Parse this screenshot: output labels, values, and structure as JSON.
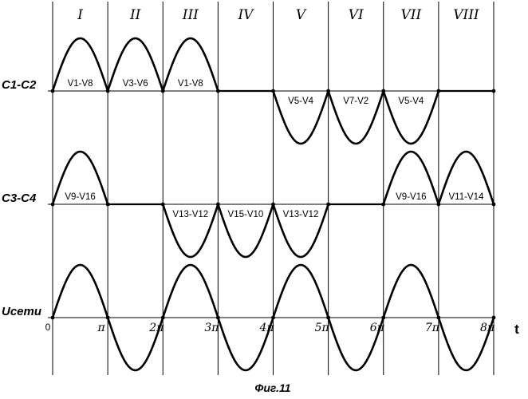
{
  "intervals": [
    "I",
    "II",
    "III",
    "IV",
    "V",
    "VI",
    "VII",
    "VIII"
  ],
  "rows": [
    {
      "label": "C1-C2",
      "waves": [
        1,
        1,
        1,
        0,
        -1,
        -1,
        -1,
        0
      ],
      "labels": [
        "V1-V8",
        "V3-V6",
        "V1-V8",
        "",
        "V5-V4",
        "V7-V2",
        "V5-V4",
        ""
      ]
    },
    {
      "label": "C3-C4",
      "waves": [
        1,
        0,
        -1,
        -1,
        -1,
        0,
        1,
        1
      ],
      "labels": [
        "V9-V16",
        "",
        "V13-V12",
        "V15-V10",
        "V13-V12",
        "",
        "V9-V16",
        "V11-V14"
      ]
    },
    {
      "label": "Uсети",
      "waves": [
        1,
        -1,
        1,
        -1,
        1,
        -1,
        1,
        -1
      ],
      "labels": [
        "",
        "",
        "",
        "",
        "",
        "",
        "",
        ""
      ]
    }
  ],
  "axis": {
    "origin_label": "0",
    "tick_labels": [
      "π",
      "2π",
      "3π",
      "4π",
      "5π",
      "6π",
      "7π",
      "8π"
    ],
    "variable": "t"
  },
  "caption": "Фиг.11"
}
